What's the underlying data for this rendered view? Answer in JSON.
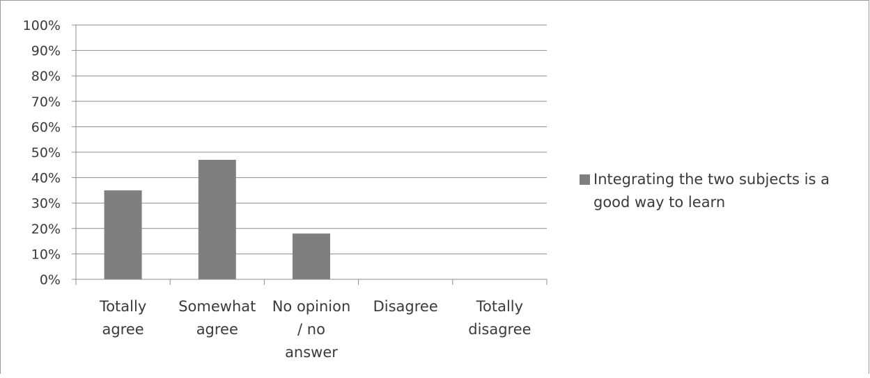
{
  "chart_data": {
    "type": "bar",
    "categories": [
      [
        "Totally",
        "agree"
      ],
      [
        "Somewhat",
        "agree"
      ],
      [
        "No opinion",
        "/ no",
        "answer"
      ],
      [
        "Disagree"
      ],
      [
        "Totally",
        "disagree"
      ]
    ],
    "series": [
      {
        "name": "Integrating the two subjects is a good way to learn",
        "legend_lines": [
          "Integrating the two subjects is a",
          "good way to learn"
        ],
        "values": [
          35,
          47,
          18,
          0,
          0
        ],
        "color": "#7f7f7f"
      }
    ],
    "ylim": [
      0,
      100
    ],
    "ytick_step": 10,
    "ytick_format": "%",
    "grid": true,
    "legend_position": "right"
  }
}
